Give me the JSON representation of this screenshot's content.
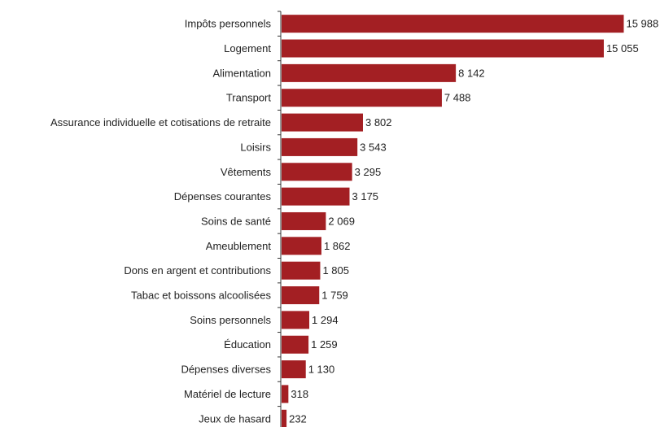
{
  "chart_data": {
    "type": "bar",
    "orientation": "horizontal",
    "categories": [
      "Impôts personnels",
      "Logement",
      "Alimentation",
      "Transport",
      "Assurance individuelle et cotisations de retraite",
      "Loisirs",
      "Vêtements",
      "Dépenses courantes",
      "Soins de santé",
      "Ameublement",
      "Dons en argent et contributions",
      "Tabac et boissons alcoolisées",
      "Soins personnels",
      "Éducation",
      "Dépenses diverses",
      "Matériel de lecture",
      "Jeux de hasard"
    ],
    "values": [
      15988,
      15055,
      8142,
      7488,
      3802,
      3543,
      3295,
      3175,
      2069,
      1862,
      1805,
      1759,
      1294,
      1259,
      1130,
      318,
      232
    ],
    "value_labels": [
      "15 988",
      "15 055",
      "8 142",
      "7 488",
      "3 802",
      "3 543",
      "3 295",
      "3 175",
      "2 069",
      "1 862",
      "1 805",
      "1 759",
      "1 294",
      "1 259",
      "1 130",
      "318",
      "232"
    ],
    "title": "",
    "xlabel": "",
    "ylabel": "",
    "xlim": [
      0,
      16000
    ],
    "grid": false,
    "legend": "none",
    "colors": {
      "bar": "#A31F23",
      "axis": "#333333",
      "text": "#222222"
    }
  }
}
